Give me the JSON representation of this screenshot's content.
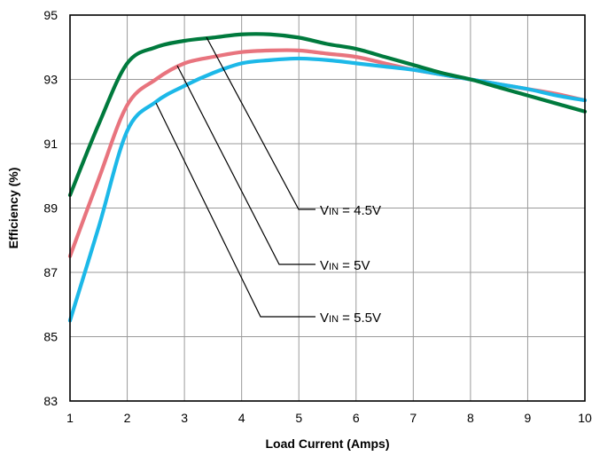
{
  "chart_data": {
    "type": "line",
    "title": "",
    "xlabel": "Load Current (Amps)",
    "ylabel": "Efficiency (%)",
    "xlim": [
      1,
      10
    ],
    "ylim": [
      83,
      95
    ],
    "xticks": [
      "1",
      "2",
      "3",
      "4",
      "5",
      "6",
      "7",
      "8",
      "9",
      "10"
    ],
    "yticks": [
      "83",
      "85",
      "87",
      "89",
      "91",
      "93",
      "95"
    ],
    "grid": true,
    "legend": "none",
    "series": [
      {
        "label_main": "V",
        "label_sub": "IN",
        "label_rest": " = 4.5V",
        "color": "#007a3d",
        "x": [
          1,
          1.5,
          2,
          2.5,
          3,
          3.5,
          4,
          4.5,
          5,
          5.5,
          6,
          6.5,
          7,
          7.5,
          8,
          8.5,
          9,
          9.5,
          10
        ],
        "y": [
          89.4,
          91.6,
          93.5,
          94.0,
          94.2,
          94.3,
          94.4,
          94.4,
          94.3,
          94.1,
          93.95,
          93.7,
          93.45,
          93.2,
          93.0,
          92.75,
          92.5,
          92.25,
          92.0
        ]
      },
      {
        "label_main": "V",
        "label_sub": "IN",
        "label_rest": " = 5V",
        "color": "#e8747e",
        "x": [
          1,
          1.5,
          2,
          2.5,
          3,
          3.5,
          4,
          4.5,
          5,
          5.5,
          6,
          6.5,
          7,
          7.5,
          8,
          8.5,
          9,
          9.5,
          10
        ],
        "y": [
          87.5,
          89.9,
          92.2,
          93.0,
          93.5,
          93.7,
          93.85,
          93.9,
          93.9,
          93.8,
          93.7,
          93.5,
          93.3,
          93.15,
          93.0,
          92.85,
          92.7,
          92.55,
          92.35
        ]
      },
      {
        "label_main": "V",
        "label_sub": "IN",
        "label_rest": " = 5.5V",
        "color": "#1cb8e8",
        "x": [
          1,
          1.5,
          2,
          2.5,
          3,
          3.5,
          4,
          4.5,
          5,
          5.5,
          6,
          6.5,
          7,
          7.5,
          8,
          8.5,
          9,
          9.5,
          10
        ],
        "y": [
          85.5,
          88.4,
          91.4,
          92.3,
          92.8,
          93.2,
          93.5,
          93.6,
          93.65,
          93.6,
          93.5,
          93.4,
          93.3,
          93.15,
          93.0,
          92.85,
          92.7,
          92.5,
          92.35
        ]
      }
    ]
  }
}
